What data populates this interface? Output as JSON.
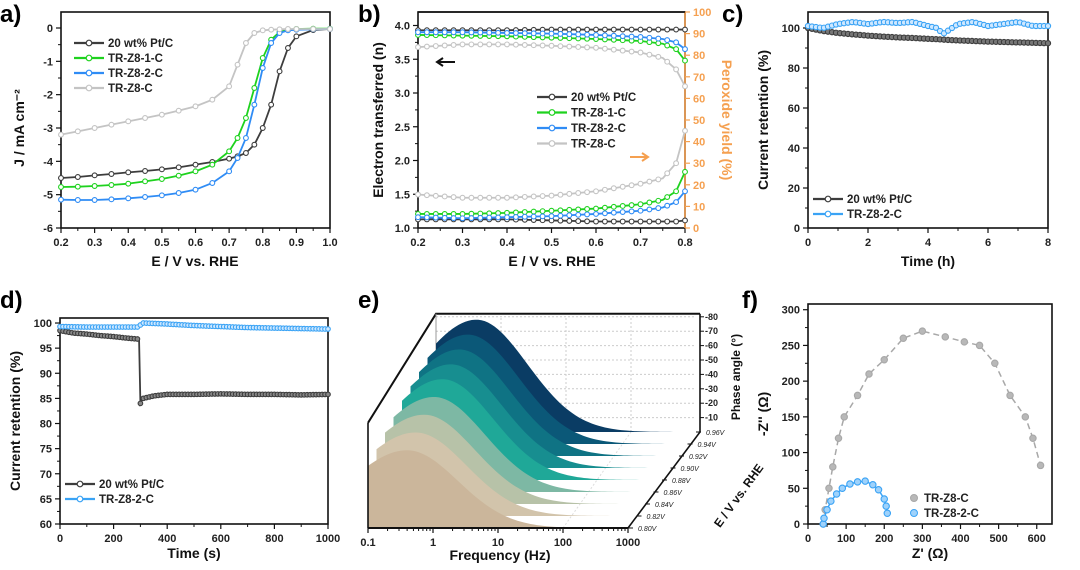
{
  "chart_data": [
    {
      "panel": "a)",
      "type": "line",
      "xlabel": "E / V vs. RHE",
      "ylabel": "J / mA cm⁻²",
      "xlim": [
        0.2,
        1.0
      ],
      "ylim": [
        -6,
        0.48
      ],
      "xticks": [
        "0.2",
        "0.3",
        "0.4",
        "0.5",
        "0.6",
        "0.7",
        "0.8",
        "0.9",
        "1.0"
      ],
      "xtick_values": [
        0.2,
        0.3,
        0.4,
        0.5,
        0.6,
        0.7,
        0.8,
        0.9,
        1.0
      ],
      "yticks": [
        "-6",
        "-5",
        "-4",
        "-3",
        "-2",
        "-1",
        "0"
      ],
      "ytick_values": [
        -6,
        -5,
        -4,
        -3,
        -2,
        -1,
        0
      ],
      "series": [
        {
          "name": "20 wt% Pt/C",
          "color": "#3d3d3d",
          "x": [
            0.2,
            0.25,
            0.3,
            0.35,
            0.4,
            0.45,
            0.5,
            0.55,
            0.6,
            0.65,
            0.7,
            0.725,
            0.75,
            0.775,
            0.8,
            0.825,
            0.85,
            0.875,
            0.9,
            0.95,
            1.0
          ],
          "y": [
            -4.5,
            -4.47,
            -4.42,
            -4.38,
            -4.33,
            -4.29,
            -4.24,
            -4.18,
            -4.1,
            -4.02,
            -3.92,
            -3.85,
            -3.75,
            -3.5,
            -3.0,
            -2.3,
            -1.3,
            -0.6,
            -0.25,
            -0.06,
            -0.03
          ]
        },
        {
          "name": "TR-Z8-1-C",
          "color": "#1ed21e",
          "x": [
            0.2,
            0.25,
            0.3,
            0.35,
            0.4,
            0.45,
            0.5,
            0.55,
            0.6,
            0.65,
            0.7,
            0.725,
            0.75,
            0.775,
            0.8,
            0.825,
            0.85,
            0.875,
            0.9,
            0.95,
            1.0
          ],
          "y": [
            -4.77,
            -4.76,
            -4.74,
            -4.71,
            -4.67,
            -4.6,
            -4.53,
            -4.43,
            -4.3,
            -4.1,
            -3.7,
            -3.3,
            -2.7,
            -1.8,
            -0.9,
            -0.35,
            -0.12,
            -0.05,
            -0.03,
            -0.02,
            -0.02
          ]
        },
        {
          "name": "TR-Z8-2-C",
          "color": "#2f8cf5",
          "x": [
            0.2,
            0.25,
            0.3,
            0.35,
            0.4,
            0.45,
            0.5,
            0.55,
            0.6,
            0.65,
            0.7,
            0.725,
            0.75,
            0.775,
            0.8,
            0.825,
            0.85,
            0.875,
            0.9,
            0.95,
            1.0
          ],
          "y": [
            -5.15,
            -5.16,
            -5.16,
            -5.14,
            -5.11,
            -5.07,
            -5.02,
            -4.95,
            -4.85,
            -4.65,
            -4.3,
            -3.9,
            -3.3,
            -2.3,
            -1.2,
            -0.45,
            -0.15,
            -0.07,
            -0.05,
            -0.04,
            -0.03
          ]
        },
        {
          "name": "TR-Z8-C",
          "color": "#c4c4c4",
          "x": [
            0.2,
            0.25,
            0.3,
            0.35,
            0.4,
            0.45,
            0.5,
            0.55,
            0.6,
            0.65,
            0.7,
            0.725,
            0.75,
            0.775,
            0.8,
            0.825,
            0.85,
            0.875,
            0.9,
            0.95,
            1.0
          ],
          "y": [
            -3.2,
            -3.1,
            -3.0,
            -2.9,
            -2.8,
            -2.7,
            -2.6,
            -2.48,
            -2.35,
            -2.15,
            -1.75,
            -1.1,
            -0.45,
            -0.15,
            -0.07,
            -0.05,
            -0.04,
            -0.03,
            -0.03,
            -0.03,
            -0.03
          ]
        }
      ]
    },
    {
      "panel": "b)",
      "type": "line",
      "xlabel": "E / V vs. RHE",
      "ylabel": "Electron transferred (n)",
      "y2label": "Peroxide yield (%)",
      "y2color": "#f5a050",
      "xlim": [
        0.2,
        0.8
      ],
      "ylim": [
        1.0,
        4.2
      ],
      "y2lim": [
        0,
        100
      ],
      "xticks": [
        "0.2",
        "0.3",
        "0.4",
        "0.5",
        "0.6",
        "0.7",
        "0.8"
      ],
      "xtick_values": [
        0.2,
        0.3,
        0.4,
        0.5,
        0.6,
        0.7,
        0.8
      ],
      "yticks": [
        "1.0",
        "1.5",
        "2.0",
        "2.5",
        "3.0",
        "3.5",
        "4.0"
      ],
      "ytick_values": [
        1.0,
        1.5,
        2.0,
        2.5,
        3.0,
        3.5,
        4.0
      ],
      "y2ticks": [
        "0",
        "10",
        "20",
        "30",
        "40",
        "50",
        "60",
        "70",
        "80",
        "90",
        "100"
      ],
      "y2tick_values": [
        0,
        10,
        20,
        30,
        40,
        50,
        60,
        70,
        80,
        90,
        100
      ],
      "annotations": [
        "left-arrow (n axis)",
        "right-arrow (peroxide axis)"
      ],
      "x": [
        0.2,
        0.3,
        0.4,
        0.5,
        0.6,
        0.7,
        0.75,
        0.78,
        0.8
      ],
      "series": [
        {
          "name": "20 wt% Pt/C",
          "color": "#3d3d3d",
          "n": [
            3.93,
            3.93,
            3.93,
            3.94,
            3.94,
            3.94,
            3.94,
            3.94,
            3.94
          ],
          "peroxide": [
            4,
            4,
            4,
            3.5,
            3,
            3,
            3,
            3,
            3.5
          ]
        },
        {
          "name": "TR-Z8-1-C",
          "color": "#1ed21e",
          "n": [
            3.86,
            3.85,
            3.84,
            3.82,
            3.8,
            3.77,
            3.73,
            3.65,
            3.48
          ],
          "peroxide": [
            6.5,
            6.5,
            7,
            8,
            9,
            11,
            13,
            17,
            26
          ]
        },
        {
          "name": "TR-Z8-2-C",
          "color": "#2f8cf5",
          "n": [
            3.9,
            3.9,
            3.89,
            3.88,
            3.86,
            3.83,
            3.8,
            3.75,
            3.65
          ],
          "peroxide": [
            5,
            4.5,
            5,
            5.5,
            6.5,
            8,
            9.5,
            12,
            17
          ]
        },
        {
          "name": "TR-Z8-C",
          "color": "#c4c4c4",
          "n": [
            3.68,
            3.72,
            3.72,
            3.7,
            3.67,
            3.6,
            3.52,
            3.35,
            3.1
          ],
          "peroxide": [
            15.5,
            14,
            14,
            15,
            17,
            20.5,
            23,
            30,
            45
          ]
        }
      ]
    },
    {
      "panel": "c)",
      "type": "line",
      "xlabel": "Time (h)",
      "ylabel": "Current retention (%)",
      "xlim": [
        0,
        8
      ],
      "ylim": [
        0,
        108
      ],
      "xticks": [
        "0",
        "2",
        "4",
        "6",
        "8"
      ],
      "xtick_values": [
        0,
        2,
        4,
        6,
        8
      ],
      "yticks": [
        "0",
        "20",
        "40",
        "60",
        "80",
        "100"
      ],
      "ytick_values": [
        0,
        20,
        40,
        60,
        80,
        100
      ],
      "series": [
        {
          "name": "20 wt% Pt/C",
          "color": "#3d3d3d",
          "x": [
            0,
            0.5,
            1,
            1.5,
            2,
            2.5,
            3,
            3.5,
            4,
            4.3,
            4.5,
            4.7,
            5,
            5.5,
            6,
            6.5,
            7,
            7.5,
            8
          ],
          "y": [
            100,
            98.5,
            97.5,
            96.8,
            96.2,
            95.7,
            95.3,
            95,
            94.6,
            94.4,
            94.2,
            94,
            93.8,
            93.5,
            93.2,
            93,
            92.8,
            92.6,
            92.4
          ]
        },
        {
          "name": "TR-Z8-2-C",
          "color": "#3aa3f5",
          "x": [
            0,
            0.5,
            1,
            1.5,
            2,
            2.5,
            3,
            3.5,
            4,
            4.3,
            4.5,
            4.7,
            5,
            5.5,
            6,
            6.5,
            7,
            7.5,
            8
          ],
          "y": [
            101,
            100,
            102,
            103,
            102,
            103,
            102.5,
            103,
            101,
            100,
            97,
            99,
            102,
            103,
            101,
            102,
            103,
            101,
            101
          ]
        }
      ]
    },
    {
      "panel": "d)",
      "type": "line",
      "xlabel": "Time (s)",
      "ylabel": "Current retention (%)",
      "xlim": [
        0,
        1000
      ],
      "ylim": [
        60,
        101
      ],
      "xticks": [
        "0",
        "200",
        "400",
        "600",
        "800",
        "1000"
      ],
      "xtick_values": [
        0,
        200,
        400,
        600,
        800,
        1000
      ],
      "yticks": [
        "60",
        "65",
        "70",
        "75",
        "80",
        "85",
        "90",
        "95",
        "100"
      ],
      "ytick_values": [
        60,
        65,
        70,
        75,
        80,
        85,
        90,
        95,
        100
      ],
      "series": [
        {
          "name": "20 wt% Pt/C",
          "color": "#3d3d3d",
          "x": [
            0,
            50,
            100,
            150,
            200,
            250,
            295,
            300,
            310,
            350,
            400,
            500,
            600,
            700,
            800,
            900,
            1000
          ],
          "y": [
            98.5,
            98,
            97.8,
            97.5,
            97.3,
            97,
            96.8,
            84,
            85,
            85.5,
            85.8,
            85.8,
            85.9,
            85.8,
            85.8,
            85.7,
            85.8
          ]
        },
        {
          "name": "TR-Z8-2-C",
          "color": "#3aa3f5",
          "x": [
            0,
            100,
            200,
            290,
            310,
            400,
            500,
            600,
            700,
            800,
            900,
            1000
          ],
          "y": [
            99.3,
            99.2,
            99.2,
            99.2,
            100,
            99.8,
            99.5,
            99.3,
            99.1,
            99,
            98.9,
            98.8
          ]
        }
      ]
    },
    {
      "panel": "e)",
      "type": "area",
      "xlabel": "Frequency (Hz)",
      "ylabel": "E / V vs. RHE",
      "zlabel": "Phase angle (°)",
      "xscale": "log",
      "xlim": [
        0.1,
        1000
      ],
      "xticks": [
        "0.1",
        "1",
        "10",
        "100",
        "1000"
      ],
      "xtick_values": [
        0.1,
        1,
        10,
        100,
        1000
      ],
      "zticks": [
        "-10",
        "-20",
        "-30",
        "-40",
        "-50",
        "-60",
        "-70",
        "-80"
      ],
      "ztick_values": [
        10,
        20,
        30,
        40,
        50,
        60,
        70,
        80
      ],
      "layers": [
        {
          "potential": "0.80V",
          "color": "#cbb69b",
          "peak_phase": 54,
          "peak_hz": 0.4
        },
        {
          "potential": "0.82V",
          "color": "#d2c4ab",
          "peak_phase": 58,
          "peak_hz": 0.4
        },
        {
          "potential": "0.84V",
          "color": "#b7c2a8",
          "peak_phase": 62,
          "peak_hz": 0.4
        },
        {
          "potential": "0.86V",
          "color": "#7db8a4",
          "peak_phase": 66,
          "peak_hz": 0.42
        },
        {
          "potential": "0.88V",
          "color": "#1fa898",
          "peak_phase": 70,
          "peak_hz": 0.42
        },
        {
          "potential": "0.90V",
          "color": "#178e90",
          "peak_phase": 72,
          "peak_hz": 0.42
        },
        {
          "potential": "0.92V",
          "color": "#0f7384",
          "peak_phase": 74,
          "peak_hz": 0.42
        },
        {
          "potential": "0.94V",
          "color": "#0b5878",
          "peak_phase": 76,
          "peak_hz": 0.42
        },
        {
          "potential": "0.96V",
          "color": "#0a3c64",
          "peak_phase": 78,
          "peak_hz": 0.42
        }
      ]
    },
    {
      "panel": "f)",
      "type": "scatter",
      "xlabel": "Z' (Ω)",
      "ylabel": "-Z'' (Ω)",
      "xlim": [
        0,
        640
      ],
      "ylim": [
        0,
        308
      ],
      "xticks": [
        "0",
        "100",
        "200",
        "300",
        "400",
        "500",
        "600"
      ],
      "xtick_values": [
        0,
        100,
        200,
        300,
        400,
        500,
        600
      ],
      "yticks": [
        "0",
        "50",
        "100",
        "150",
        "200",
        "250",
        "300"
      ],
      "ytick_values": [
        0,
        50,
        100,
        150,
        200,
        250,
        300
      ],
      "series": [
        {
          "name": "TR-Z8-C",
          "color": "#a8a8a8",
          "points": [
            [
              40,
              0
            ],
            [
              45,
              20
            ],
            [
              55,
              50
            ],
            [
              65,
              80
            ],
            [
              80,
              120
            ],
            [
              95,
              150
            ],
            [
              130,
              180
            ],
            [
              160,
              210
            ],
            [
              200,
              230
            ],
            [
              250,
              260
            ],
            [
              300,
              270
            ],
            [
              360,
              262
            ],
            [
              410,
              255
            ],
            [
              450,
              250
            ],
            [
              490,
              225
            ],
            [
              530,
              180
            ],
            [
              570,
              150
            ],
            [
              590,
              120
            ],
            [
              610,
              82
            ]
          ]
        },
        {
          "name": "TR-Z8-2-C",
          "color": "#3aa3f5",
          "points": [
            [
              40,
              0
            ],
            [
              42,
              8
            ],
            [
              50,
              20
            ],
            [
              60,
              32
            ],
            [
              75,
              42
            ],
            [
              90,
              50
            ],
            [
              110,
              56
            ],
            [
              130,
              59
            ],
            [
              150,
              60
            ],
            [
              170,
              55
            ],
            [
              185,
              48
            ],
            [
              200,
              35
            ],
            [
              205,
              25
            ],
            [
              208,
              15
            ]
          ]
        }
      ]
    }
  ]
}
